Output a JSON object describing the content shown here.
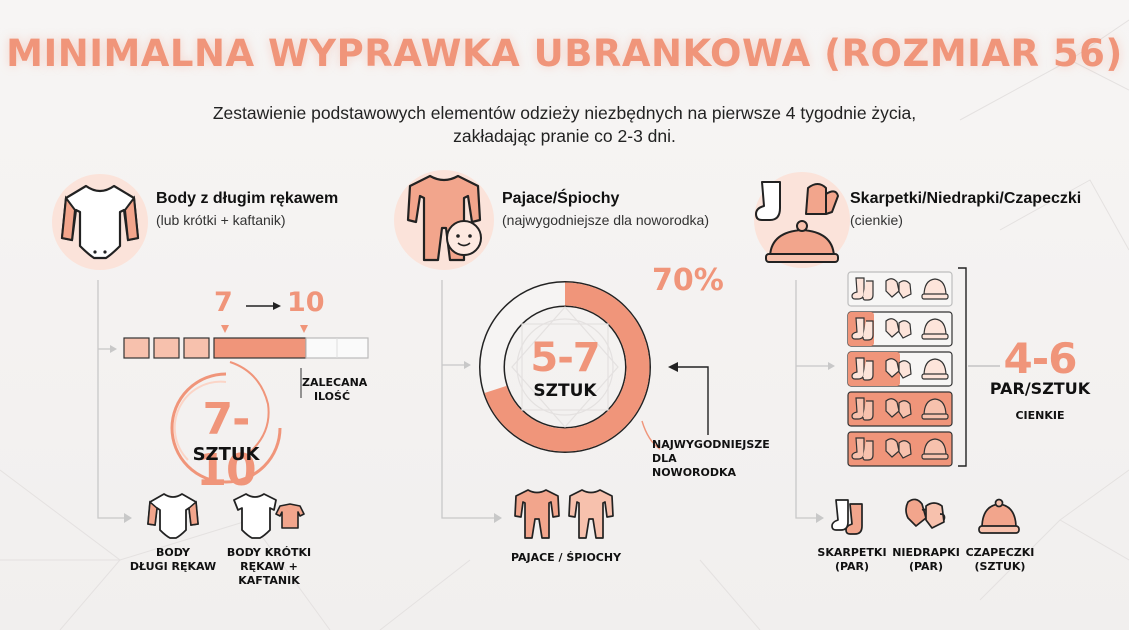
{
  "title": "MINIMALNA WYPRAWKA UBRANKOWA (ROZMIAR 56)",
  "subtitle_line1": "Zestawienie podstawowych elementów odzieży niezbędnych na pierwsze 4 tygodnie życia,",
  "subtitle_line2": "zakładając pranie co 2-3 dni.",
  "colors": {
    "accent": "#f0957a",
    "accent_dark": "#e8795a",
    "text": "#1f1f1f",
    "line": "#c8c8c8"
  },
  "col1": {
    "title": "Body z długim rękawem",
    "subtitle": "(lub krótki + kaftanik)",
    "icon": "bodysuit-long-sleeve-icon",
    "bar_from": "7",
    "bar_to": "10",
    "bar_note": [
      "ZALECANA",
      "ILOŚĆ"
    ],
    "amount": "7-10",
    "unit": "SZTUK",
    "items": [
      {
        "icon": "bodysuit-long-sleeve-icon",
        "label": [
          "BODY",
          "DŁUGI RĘKAW"
        ]
      },
      {
        "icon": "bodysuit-short-sleeve-kimono-icon",
        "label": [
          "BODY KRÓTKI",
          "RĘKAW + KAFTANIK"
        ]
      }
    ]
  },
  "col2": {
    "title": "Pajace/Śpiochy",
    "subtitle": "(najwygodniejsze dla noworodka)",
    "icon": "sleepsuit-baby-icon",
    "percent": "70%",
    "percent_value": 70,
    "amount": "5-7",
    "unit": "SZTUK",
    "note": [
      "NAJWYGODNIEJSZE",
      "DLA NOWORODKA"
    ],
    "items_label": "PAJACE / ŚPIOCHY"
  },
  "col3": {
    "title": "Skarpetki/Niedrapki/Czapeczki",
    "subtitle": "(cienkie)",
    "icon": "socks-mittens-hat-icon",
    "amount": "4-6",
    "unit": "PAR/SZTUK",
    "note": "CIENKIE",
    "rows_filled": [
      0.0,
      0.25,
      0.5,
      1.0,
      1.0
    ],
    "items": [
      {
        "icon": "socks-icon",
        "label": [
          "SKARPETKI",
          "(PAR)"
        ]
      },
      {
        "icon": "mittens-icon",
        "label": [
          "NIEDRAPKI",
          "(PAR)"
        ]
      },
      {
        "icon": "hat-icon",
        "label": [
          "CZAPECZKI",
          "(SZTUK)"
        ]
      }
    ]
  }
}
